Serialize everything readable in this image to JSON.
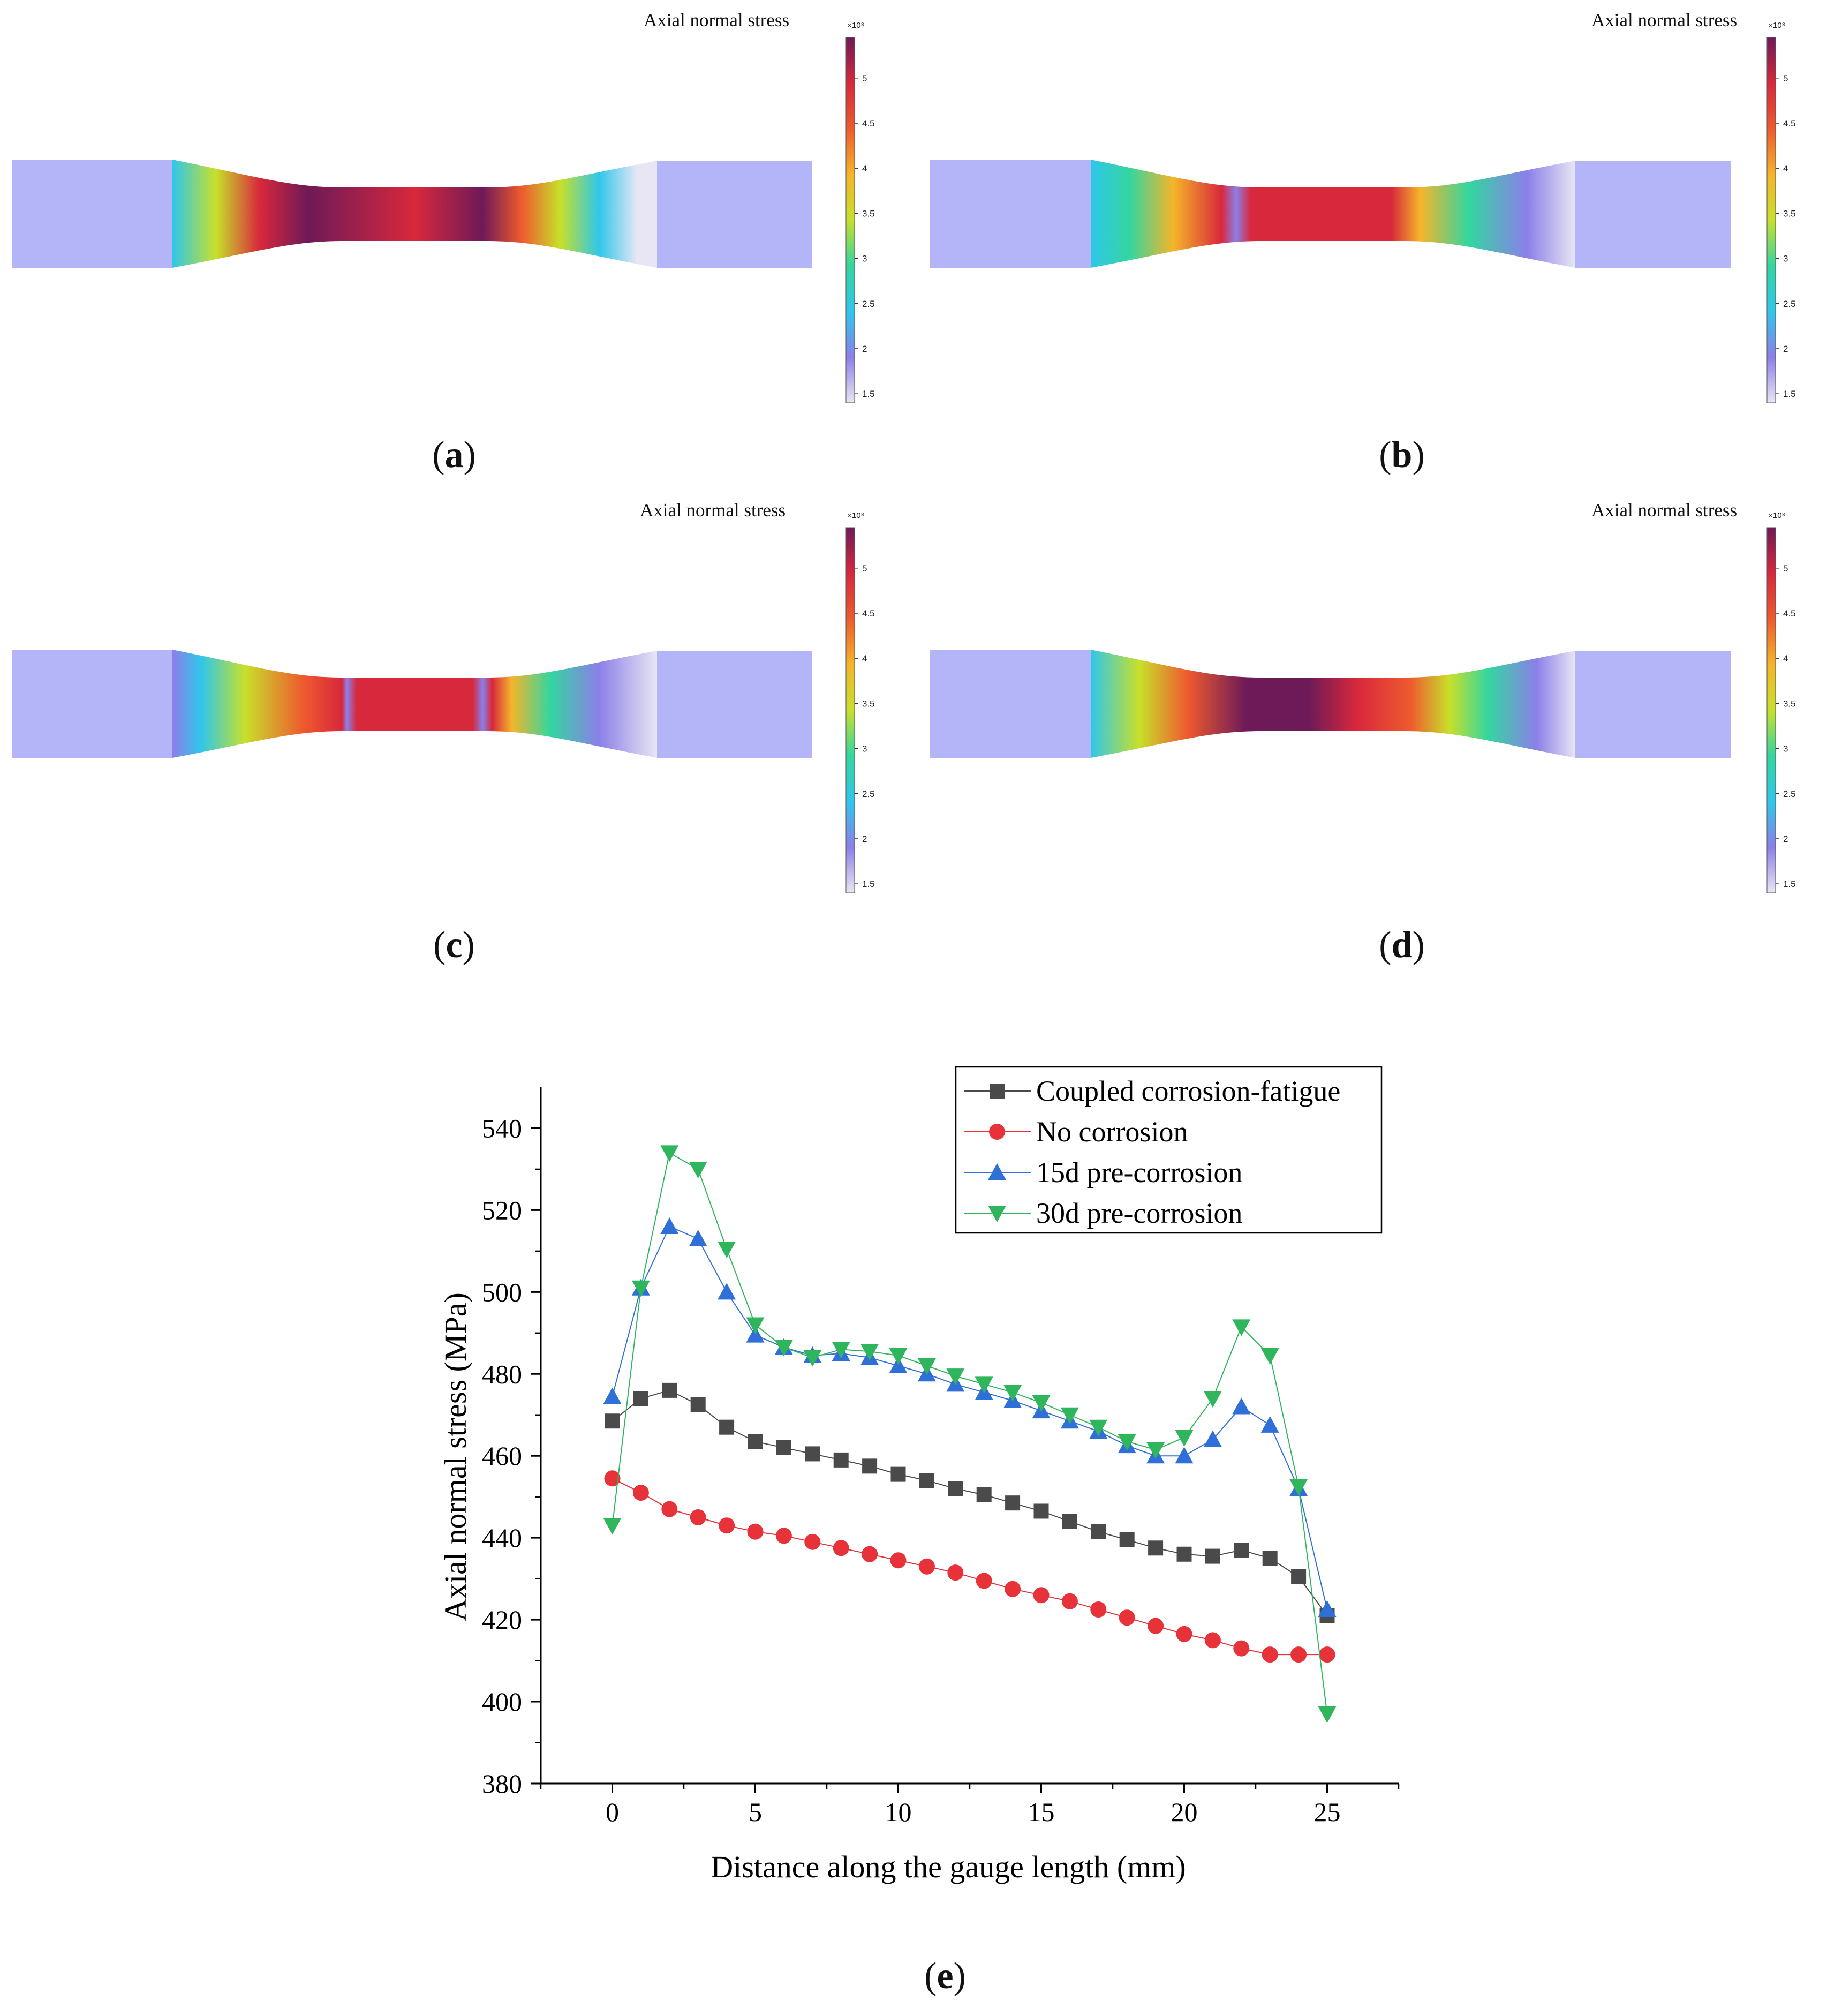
{
  "panels": [
    {
      "id": "a",
      "label": "a",
      "title": "Axial normal stress",
      "colorbar_multiplier": "×10⁸",
      "ticks": [
        "5",
        "4.5",
        "4",
        "3.5",
        "3",
        "2.5",
        "2",
        "1.5"
      ]
    },
    {
      "id": "b",
      "label": "b",
      "title": "Axial normal stress",
      "colorbar_multiplier": "×10⁸",
      "ticks": [
        "5",
        "4.5",
        "4",
        "3.5",
        "3",
        "2.5",
        "2",
        "1.5"
      ]
    },
    {
      "id": "c",
      "label": "c",
      "title": "Axial normal stress",
      "colorbar_multiplier": "×10⁸",
      "ticks": [
        "5",
        "4.5",
        "4",
        "3.5",
        "3",
        "2.5",
        "2",
        "1.5"
      ]
    },
    {
      "id": "d",
      "label": "d",
      "title": "Axial normal stress",
      "colorbar_multiplier": "×10⁸",
      "ticks": [
        "5",
        "4.5",
        "4",
        "3.5",
        "3",
        "2.5",
        "2",
        "1.5"
      ]
    }
  ],
  "colormap": [
    "#e8e6f4",
    "#8b7fe8",
    "#2fc7ea",
    "#33d6a0",
    "#c8e02a",
    "#f5b52a",
    "#ee5a2e",
    "#d8283c",
    "#6e1a58"
  ],
  "specimen_grip_color": "#b4b4f8",
  "chart_label": "e",
  "chart_data": {
    "type": "line",
    "xlabel": "Distance along the gauge length (mm)",
    "ylabel": "Axial normal stress (MPa)",
    "xlim": [
      -2.5,
      27.5
    ],
    "ylim": [
      380,
      550
    ],
    "xticks": [
      0,
      5,
      10,
      15,
      20,
      25
    ],
    "yticks": [
      380,
      400,
      420,
      440,
      460,
      480,
      500,
      520,
      540
    ],
    "legend_position": "top-right",
    "x": [
      0,
      1,
      2,
      3,
      4,
      5,
      6,
      7,
      8,
      9,
      10,
      11,
      12,
      13,
      14,
      15,
      16,
      17,
      18,
      19,
      20,
      21,
      22,
      23,
      24,
      25
    ],
    "series": [
      {
        "name": "Coupled corrosion-fatigue",
        "color": "#4a4a4a",
        "marker": "square",
        "values": [
          468.5,
          474,
          476,
          472.5,
          467,
          463.5,
          462,
          460.5,
          459,
          457.5,
          455.5,
          454,
          452,
          450.5,
          448.5,
          446.5,
          444,
          441.5,
          439.5,
          437.5,
          436,
          435.5,
          437,
          435,
          430.5,
          421
        ]
      },
      {
        "name": "No corrosion",
        "color": "#e8323a",
        "marker": "circle",
        "values": [
          454.5,
          451,
          447,
          445,
          443,
          441.5,
          440.5,
          439,
          437.5,
          436,
          434.5,
          433,
          431.5,
          429.5,
          427.5,
          426,
          424.5,
          422.5,
          420.5,
          418.5,
          416.5,
          415,
          413,
          411.5,
          411.5,
          411.5
        ]
      },
      {
        "name": "15d pre-corrosion",
        "color": "#2e6fd8",
        "marker": "triangle-up",
        "values": [
          474.5,
          501,
          516,
          513,
          500,
          489.5,
          486.5,
          484.5,
          485,
          484,
          482,
          480,
          477.5,
          475.5,
          473.5,
          471,
          468.5,
          466,
          462.5,
          460,
          460,
          464,
          472,
          467.5,
          452,
          422.5
        ]
      },
      {
        "name": "30d pre-corrosion",
        "color": "#2fb55c",
        "marker": "triangle-down",
        "values": [
          443,
          501,
          534,
          530,
          510.5,
          492,
          486.5,
          484,
          486,
          485.5,
          484.5,
          482,
          479.5,
          477.5,
          475.5,
          473,
          470,
          467,
          463.5,
          461.5,
          464.5,
          474,
          491.5,
          484.5,
          452.5,
          397
        ]
      }
    ]
  }
}
